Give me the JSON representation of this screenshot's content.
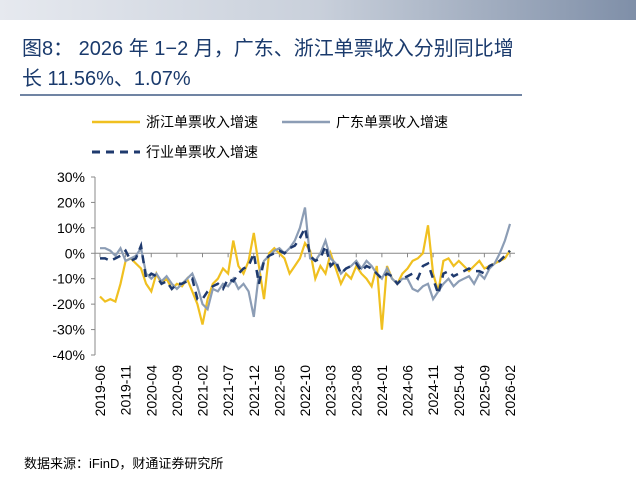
{
  "title": "图8： 2026 年 1−2 月，广东、浙江单票收入分别同比增长 11.56%、1.07%",
  "source": "数据来源：iFinD，财通证券研究所",
  "chart_data": {
    "type": "line",
    "categories": [
      "2019-06",
      null,
      null,
      null,
      null,
      "2019-11",
      null,
      null,
      null,
      null,
      "2020-04",
      null,
      null,
      null,
      null,
      "2020-09",
      null,
      null,
      null,
      null,
      "2021-02",
      null,
      null,
      null,
      null,
      "2021-07",
      null,
      null,
      null,
      null,
      "2021-12",
      null,
      null,
      null,
      null,
      "2022-05",
      null,
      null,
      null,
      null,
      "2022-10",
      null,
      null,
      null,
      null,
      "2023-03",
      null,
      null,
      null,
      null,
      "2023-08",
      null,
      null,
      null,
      null,
      "2024-01",
      null,
      null,
      null,
      null,
      "2024-06",
      null,
      null,
      null,
      null,
      "2024-11",
      null,
      null,
      null,
      null,
      "2025-04",
      null,
      null,
      null,
      null,
      "2025-09",
      null,
      null,
      null,
      null,
      "2026-02"
    ],
    "series": [
      {
        "name": "浙江单票收入增速",
        "color": "#f0c020",
        "dash": false,
        "values": [
          -17,
          -19,
          -18,
          -19,
          -12,
          -3,
          -2,
          -4,
          -6,
          -12,
          -15,
          -8,
          -12,
          -10,
          -14,
          -12,
          -13,
          -10,
          -15,
          -20,
          -28,
          -18,
          -12,
          -10,
          -6,
          -8,
          5,
          -5,
          -8,
          -3,
          8,
          -5,
          -18,
          0,
          2,
          0,
          -2,
          -8,
          -5,
          -2,
          4,
          1,
          -10,
          -5,
          -8,
          0,
          -6,
          -12,
          -8,
          -10,
          -5,
          -8,
          -10,
          -13,
          -5,
          -30,
          -5,
          -10,
          -12,
          -8,
          -6,
          -3,
          -2,
          0,
          11,
          -8,
          -15,
          -3,
          -2,
          -5,
          -3,
          -5,
          -7,
          -5,
          -3,
          -6,
          -5,
          -4,
          -3,
          -2,
          1.07
        ]
      },
      {
        "name": "广东单票收入增速",
        "color": "#8c9db5",
        "dash": false,
        "values": [
          2,
          2,
          1,
          -1,
          2,
          -3,
          -2,
          -1,
          2,
          -8,
          -10,
          -8,
          -11,
          -9,
          -12,
          -14,
          -12,
          -10,
          -8,
          -13,
          -20,
          -22,
          -14,
          -15,
          -12,
          -13,
          -10,
          -14,
          -12,
          -15,
          -25,
          -8,
          -3,
          -1,
          1,
          2,
          0,
          2,
          5,
          10,
          18,
          -2,
          -3,
          0,
          5,
          -2,
          -4,
          -8,
          -6,
          -5,
          -3,
          -6,
          -3,
          -5,
          -8,
          -10,
          -6,
          -10,
          -12,
          -10,
          -10,
          -14,
          -15,
          -13,
          -12,
          -18,
          -15,
          -12,
          -10,
          -13,
          -11,
          -10,
          -9,
          -12,
          -8,
          -10,
          -6,
          -4,
          0,
          5,
          11.56
        ]
      },
      {
        "name": "行业单票收入增速",
        "color": "#1f3a6e",
        "dash": true,
        "values": [
          -2,
          -2,
          -3,
          -2,
          -1,
          1,
          -3,
          -2,
          3,
          -10,
          -8,
          -9,
          -12,
          -11,
          -14,
          -12,
          -12,
          -11,
          -10,
          -18,
          -18,
          -15,
          -13,
          -12,
          -14,
          -10,
          -11,
          -8,
          -6,
          -5,
          0,
          -12,
          -3,
          -1,
          0,
          1,
          0,
          2,
          3,
          6,
          10,
          -1,
          -3,
          -2,
          3,
          -5,
          -3,
          -8,
          -6,
          -5,
          -4,
          -7,
          -5,
          -6,
          -8,
          -10,
          -8,
          -9,
          -12,
          -10,
          -9,
          -8,
          -10,
          -5,
          -4,
          -10,
          -16,
          -8,
          -7,
          -9,
          -8,
          -7,
          -6,
          -7,
          -7,
          -8,
          -5,
          -4,
          -3,
          -1,
          1
        ]
      }
    ],
    "ylim": [
      -40,
      30
    ],
    "yticks": [
      {
        "value": -40,
        "label": "-40%"
      },
      {
        "value": -30,
        "label": "-30%"
      },
      {
        "value": -20,
        "label": "-20%"
      },
      {
        "value": -10,
        "label": "-10%"
      },
      {
        "value": 0,
        "label": "0%"
      },
      {
        "value": 10,
        "label": "10%"
      },
      {
        "value": 20,
        "label": "20%"
      },
      {
        "value": 30,
        "label": "30%"
      }
    ]
  }
}
